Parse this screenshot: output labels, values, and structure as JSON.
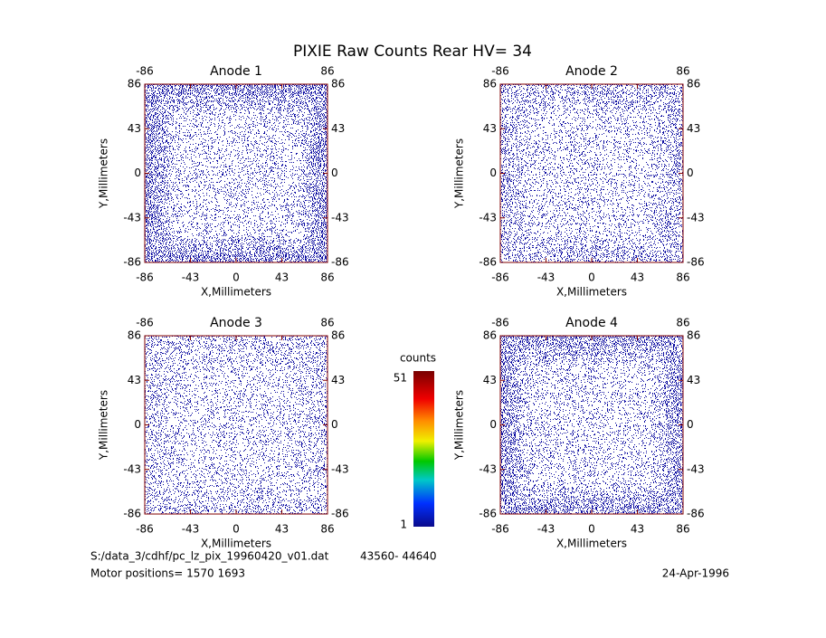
{
  "chart_data": {
    "type": "image",
    "title": "PIXIE Raw Counts Rear HV= 34",
    "panels": [
      {
        "title": "Anode 1",
        "xlabel": "X,Millimeters",
        "ylabel": "Y,Millimeters",
        "xlim": [
          -86,
          86
        ],
        "ylim": [
          -86,
          86
        ],
        "xticks": [
          -86,
          -43,
          0,
          43,
          86
        ],
        "yticks": [
          -86,
          -43,
          0,
          43,
          86
        ],
        "x2ticks": [
          -86,
          86
        ]
      },
      {
        "title": "Anode 2",
        "xlabel": "X,Millimeters",
        "ylabel": "Y,Millimeters",
        "xlim": [
          -86,
          86
        ],
        "ylim": [
          -86,
          86
        ],
        "xticks": [
          -86,
          -43,
          0,
          43,
          86
        ],
        "yticks": [
          -86,
          -43,
          0,
          43,
          86
        ],
        "x2ticks": [
          -86,
          86
        ]
      },
      {
        "title": "Anode 3",
        "xlabel": "X,Millimeters",
        "ylabel": "Y,Millimeters",
        "xlim": [
          -86,
          86
        ],
        "ylim": [
          -86,
          86
        ],
        "xticks": [
          -86,
          -43,
          0,
          43,
          86
        ],
        "yticks": [
          -86,
          -43,
          0,
          43,
          86
        ],
        "x2ticks": [
          -86,
          86
        ]
      },
      {
        "title": "Anode 4",
        "xlabel": "X,Millimeters",
        "ylabel": "Y,Millimeters",
        "xlim": [
          -86,
          86
        ],
        "ylim": [
          -86,
          86
        ],
        "xticks": [
          -86,
          -43,
          0,
          43,
          86
        ],
        "yticks": [
          -86,
          -43,
          0,
          43,
          86
        ],
        "x2ticks": [
          -86,
          86
        ]
      }
    ],
    "colorbar": {
      "label": "counts",
      "lim": [
        1,
        51
      ],
      "ticks": [
        1,
        51
      ]
    },
    "file": "S:/data_3/cdhf/pc_lz_pix_19960420_v01.dat",
    "range": "43560- 44640",
    "motor": "Motor positions= 1570 1693",
    "date": "24-Apr-1996"
  }
}
